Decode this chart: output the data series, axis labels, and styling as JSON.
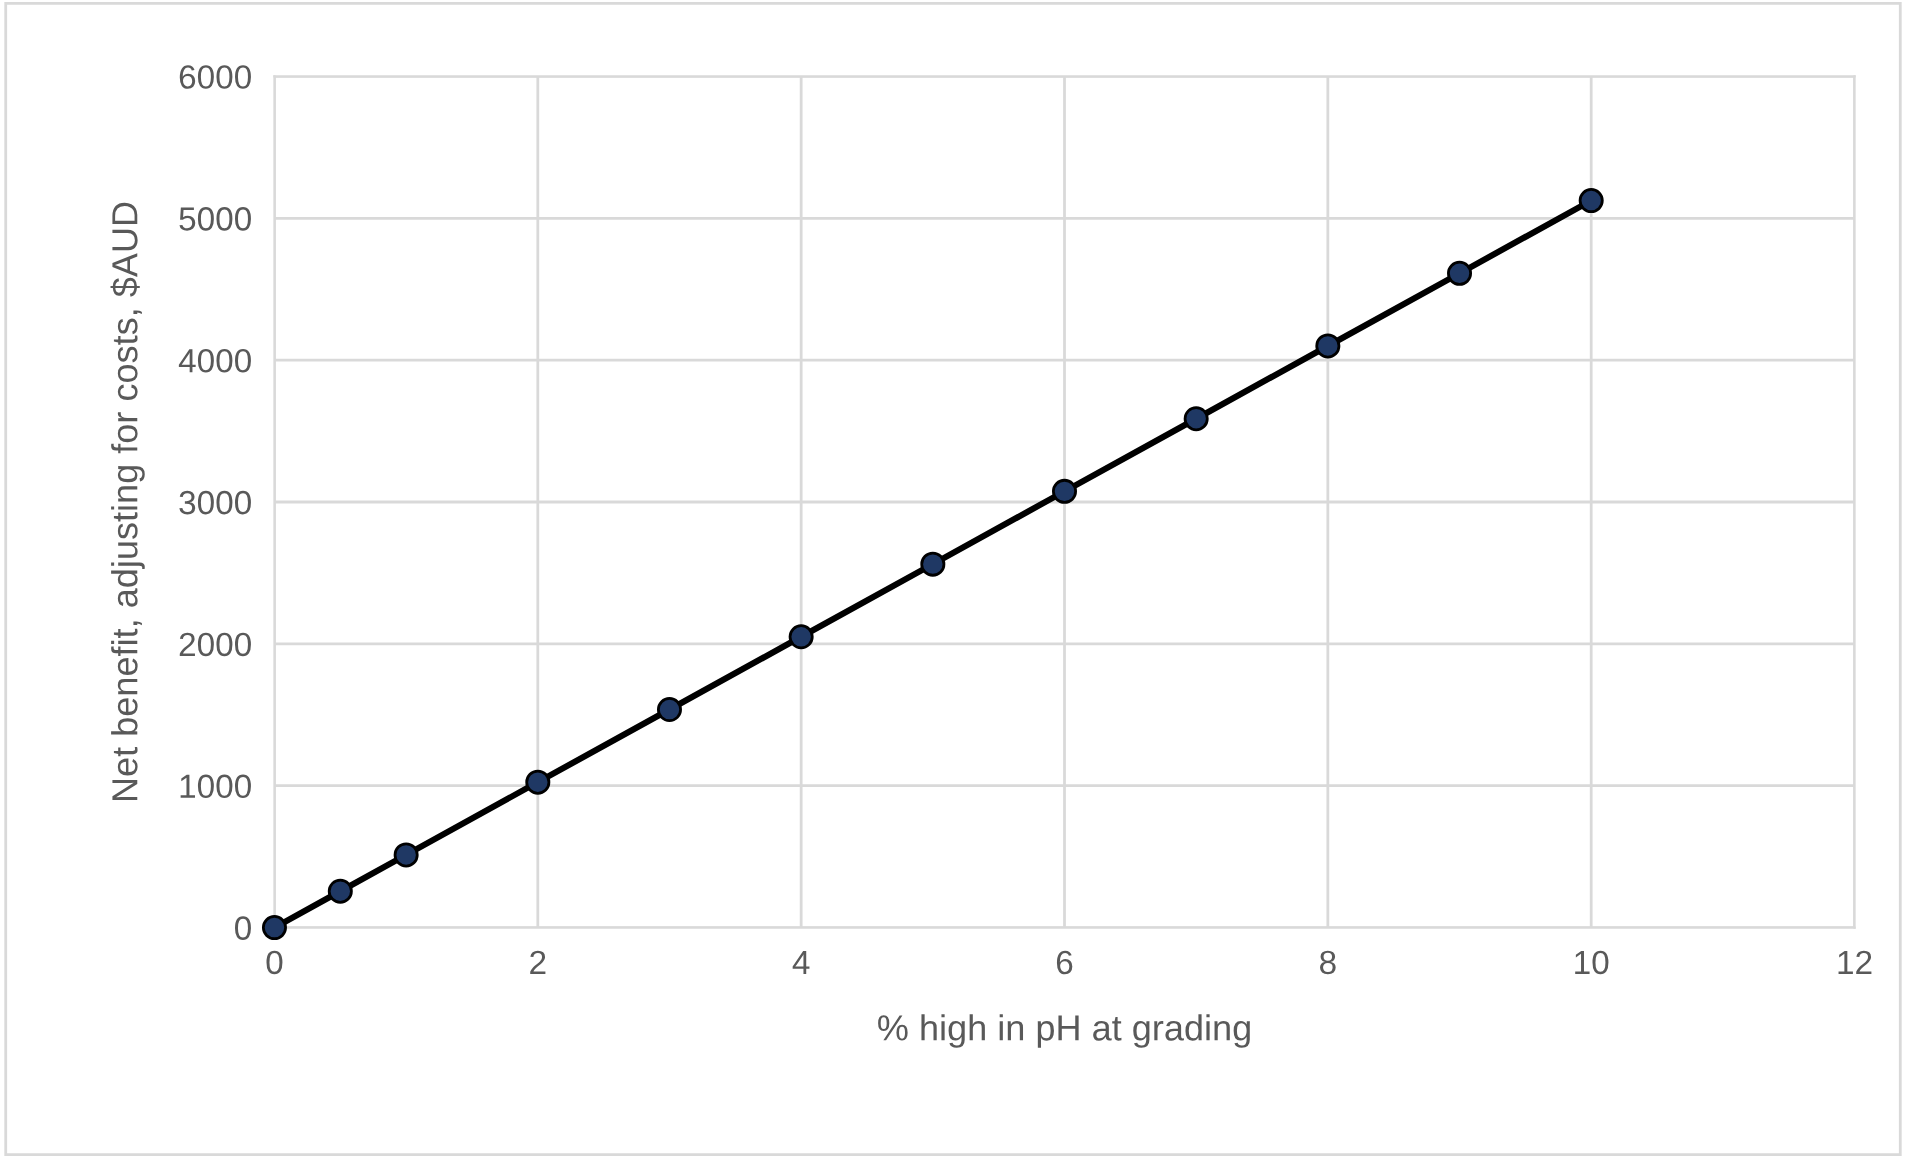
{
  "chart_data": {
    "type": "line",
    "xlabel": "% high in pH at grading",
    "ylabel": "Net benefit, adjusting for costs, $AUD",
    "x": [
      0,
      0.5,
      1,
      2,
      3,
      4,
      5,
      6,
      7,
      8,
      9,
      10
    ],
    "series": [
      {
        "color": "#1f3864",
        "values": [
          0,
          256,
          512,
          1025,
          1537,
          2050,
          2562,
          3075,
          3587,
          4100,
          4612,
          5125
        ]
      }
    ],
    "xlim": [
      0,
      12
    ],
    "xticks": [
      0,
      2,
      4,
      6,
      8,
      10,
      12
    ],
    "ylim": [
      0,
      6000
    ],
    "yticks": [
      0,
      1000,
      2000,
      3000,
      4000,
      5000,
      6000
    ],
    "grid": true,
    "marker": "circle",
    "line_style": "solid"
  }
}
